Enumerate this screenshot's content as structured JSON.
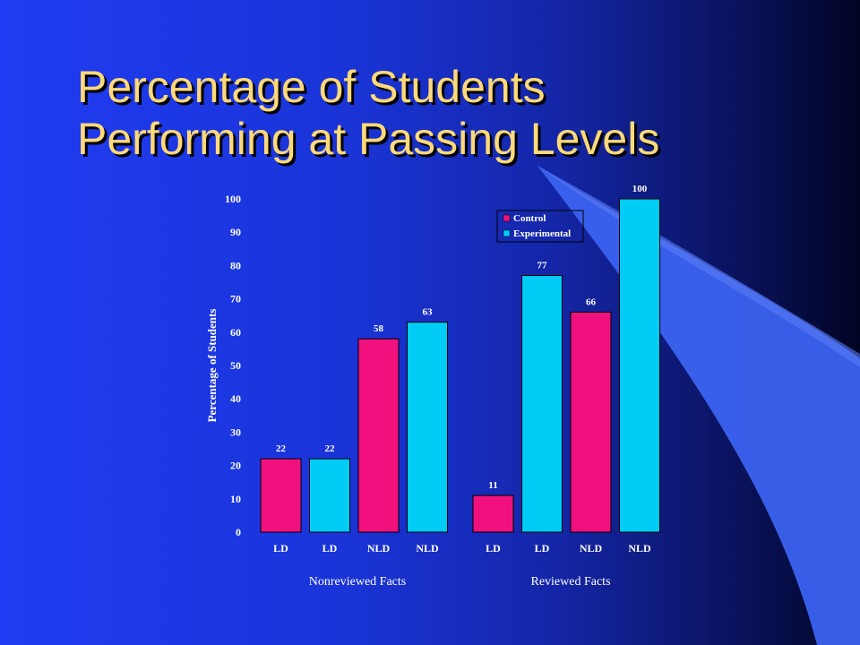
{
  "slide": {
    "title_line1": "Percentage of Students",
    "title_line2": "Performing at Passing Levels"
  },
  "colors": {
    "control": "#f0117e",
    "experimental": "#00ccf5",
    "title": "#fdd97a",
    "decor_band": "#3b63f0"
  },
  "chart_data": {
    "type": "bar",
    "title": "",
    "ylabel": "Percentage of Students",
    "xlabel": "",
    "ylim": [
      0,
      100
    ],
    "yticks": [
      0,
      10,
      20,
      30,
      40,
      50,
      60,
      70,
      80,
      90,
      100
    ],
    "grid": false,
    "legend_position": "top-right",
    "series_names": [
      "Control",
      "Experimental"
    ],
    "groups": [
      "Nonreviewed Facts",
      "Reviewed Facts"
    ],
    "bars": [
      {
        "group": "Nonreviewed Facts",
        "category": "LD",
        "series": "Control",
        "value": 22
      },
      {
        "group": "Nonreviewed Facts",
        "category": "LD",
        "series": "Experimental",
        "value": 22
      },
      {
        "group": "Nonreviewed Facts",
        "category": "NLD",
        "series": "Control",
        "value": 58
      },
      {
        "group": "Nonreviewed Facts",
        "category": "NLD",
        "series": "Experimental",
        "value": 63
      },
      {
        "group": "Reviewed Facts",
        "category": "LD",
        "series": "Control",
        "value": 11
      },
      {
        "group": "Reviewed Facts",
        "category": "LD",
        "series": "Experimental",
        "value": 77
      },
      {
        "group": "Reviewed Facts",
        "category": "NLD",
        "series": "Control",
        "value": 66
      },
      {
        "group": "Reviewed Facts",
        "category": "NLD",
        "series": "Experimental",
        "value": 100
      }
    ]
  }
}
